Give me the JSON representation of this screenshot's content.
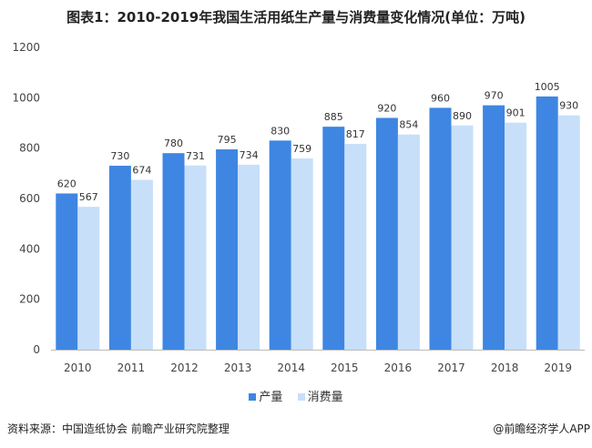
{
  "chart_data": {
    "type": "bar",
    "title": "图表1：2010-2019年我国生活用纸生产量与消费量变化情况(单位：万吨)",
    "categories": [
      "2010",
      "2011",
      "2012",
      "2013",
      "2014",
      "2015",
      "2016",
      "2017",
      "2018",
      "2019"
    ],
    "series": [
      {
        "name": "产量",
        "color": "#3e86e2",
        "values": [
          620,
          730,
          780,
          795,
          830,
          885,
          920,
          960,
          970,
          1005
        ]
      },
      {
        "name": "消费量",
        "color": "#c8dffa",
        "values": [
          567,
          674,
          731,
          734,
          759,
          817,
          854,
          890,
          901,
          930
        ]
      }
    ],
    "ylim": [
      0,
      1200
    ],
    "yticks": [
      0,
      200,
      400,
      600,
      800,
      1000,
      1200
    ],
    "grid": false,
    "legend": "bottom"
  },
  "footer": {
    "source": "资料来源：中国造纸协会 前瞻产业研究院整理",
    "credit": "@前瞻经济学人APP"
  }
}
